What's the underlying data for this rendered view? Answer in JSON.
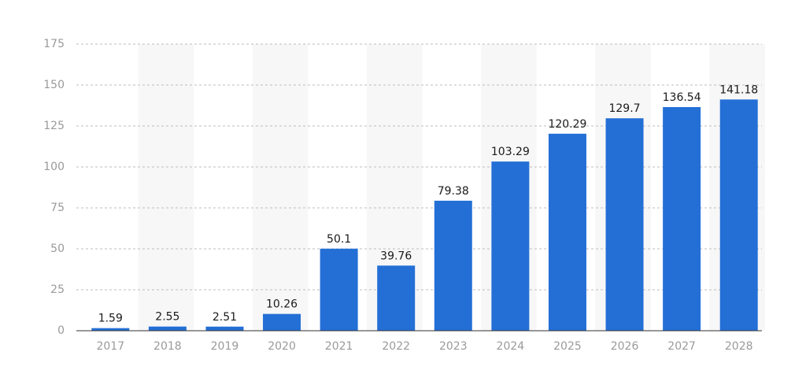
{
  "chart_data": {
    "type": "bar",
    "categories": [
      "2017",
      "2018",
      "2019",
      "2020",
      "2021",
      "2022",
      "2023",
      "2024",
      "2025",
      "2026",
      "2027",
      "2028"
    ],
    "values": [
      1.59,
      2.55,
      2.51,
      10.26,
      50.1,
      39.76,
      79.38,
      103.29,
      120.29,
      129.7,
      136.54,
      141.18
    ],
    "color": "#246fd6",
    "ylim": [
      0,
      175
    ],
    "yticks": [
      0,
      25,
      50,
      75,
      100,
      125,
      150,
      175
    ],
    "grid": true
  }
}
